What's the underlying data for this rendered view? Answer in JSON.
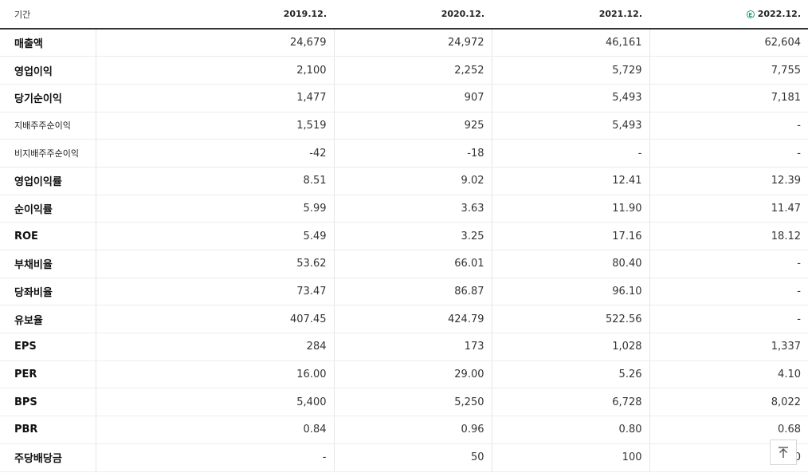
{
  "header": {
    "label": "기간",
    "periods": [
      "2019.12.",
      "2020.12.",
      "2021.12.",
      "2022.12."
    ],
    "estimate_icon": "E"
  },
  "rows": [
    {
      "label": "매출액",
      "values": [
        "24,679",
        "24,972",
        "46,161",
        "62,604"
      ]
    },
    {
      "label": "영업이익",
      "values": [
        "2,100",
        "2,252",
        "5,729",
        "7,755"
      ]
    },
    {
      "label": "당기순이익",
      "values": [
        "1,477",
        "907",
        "5,493",
        "7,181"
      ]
    },
    {
      "label": "지배주주순이익",
      "values": [
        "1,519",
        "925",
        "5,493",
        "-"
      ]
    },
    {
      "label": "비지배주주순이익",
      "values": [
        "-42",
        "-18",
        "-",
        "-"
      ]
    },
    {
      "label": "영업이익률",
      "values": [
        "8.51",
        "9.02",
        "12.41",
        "12.39"
      ]
    },
    {
      "label": "순이익률",
      "values": [
        "5.99",
        "3.63",
        "11.90",
        "11.47"
      ]
    },
    {
      "label": "ROE",
      "values": [
        "5.49",
        "3.25",
        "17.16",
        "18.12"
      ]
    },
    {
      "label": "부채비율",
      "values": [
        "53.62",
        "66.01",
        "80.40",
        "-"
      ]
    },
    {
      "label": "당좌비율",
      "values": [
        "73.47",
        "86.87",
        "96.10",
        "-"
      ]
    },
    {
      "label": "유보율",
      "values": [
        "407.45",
        "424.79",
        "522.56",
        "-"
      ]
    },
    {
      "label": "EPS",
      "values": [
        "284",
        "173",
        "1,028",
        "1,337"
      ]
    },
    {
      "label": "PER",
      "values": [
        "16.00",
        "29.00",
        "5.26",
        "4.10"
      ]
    },
    {
      "label": "BPS",
      "values": [
        "5,400",
        "5,250",
        "6,728",
        "8,022"
      ]
    },
    {
      "label": "PBR",
      "values": [
        "0.84",
        "0.96",
        "0.80",
        "0.68"
      ]
    },
    {
      "label": "주당배당금",
      "values": [
        "-",
        "50",
        "100",
        "0"
      ]
    }
  ],
  "colors": {
    "negative": "#2c7bd2",
    "estimate": "#1f9b6c"
  },
  "scroll_top_icon": "arrow-up-to-top"
}
